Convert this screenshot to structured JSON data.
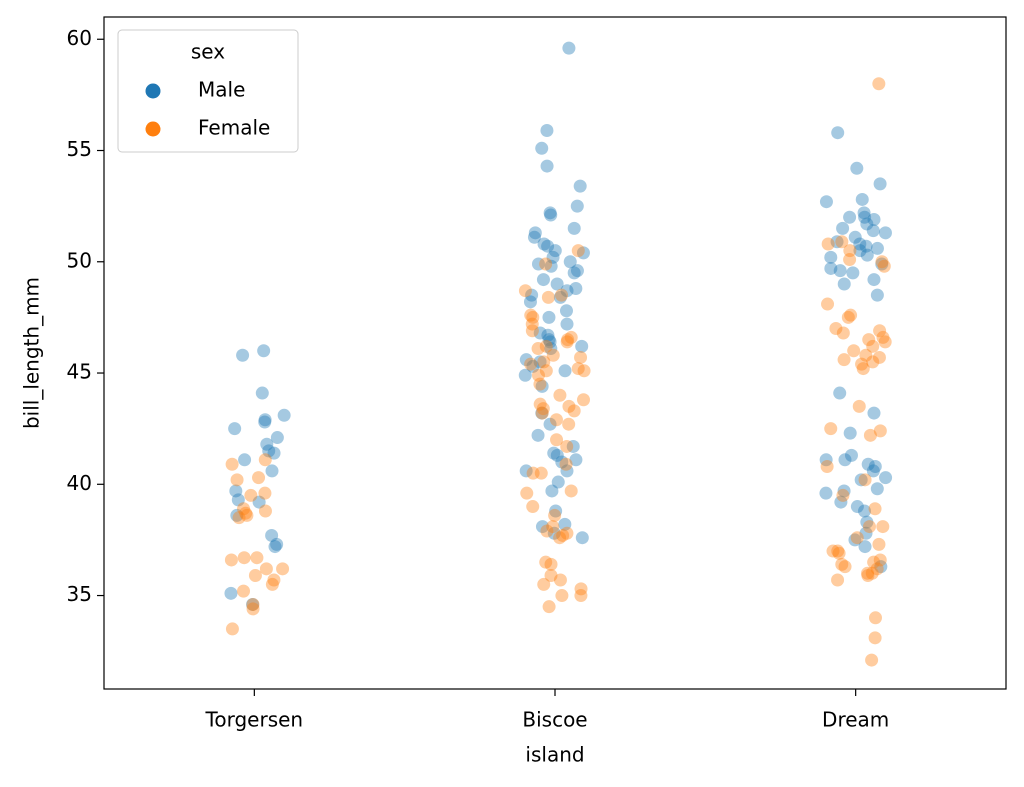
{
  "chart_data": {
    "type": "strip",
    "x_label": "island",
    "y_label": "bill_length_mm",
    "categories": [
      "Torgersen",
      "Biscoe",
      "Dream"
    ],
    "ylim": [
      30.8,
      61.0
    ],
    "yticks": [
      35,
      40,
      45,
      50,
      55,
      60
    ],
    "legend_title": "sex",
    "legend_position": "upper left",
    "series": [
      {
        "name": "Male",
        "color": "#1f77b4",
        "x": [
          "Torgersen",
          "Torgersen",
          "Torgersen",
          "Torgersen",
          "Torgersen",
          "Torgersen",
          "Torgersen",
          "Torgersen",
          "Torgersen",
          "Torgersen",
          "Torgersen",
          "Torgersen",
          "Torgersen",
          "Torgersen",
          "Torgersen",
          "Torgersen",
          "Torgersen",
          "Torgersen",
          "Torgersen",
          "Torgersen",
          "Torgersen",
          "Torgersen",
          "Biscoe",
          "Biscoe",
          "Biscoe",
          "Biscoe",
          "Biscoe",
          "Biscoe",
          "Biscoe",
          "Biscoe",
          "Biscoe",
          "Biscoe",
          "Biscoe",
          "Biscoe",
          "Biscoe",
          "Biscoe",
          "Biscoe",
          "Biscoe",
          "Biscoe",
          "Biscoe",
          "Biscoe",
          "Biscoe",
          "Biscoe",
          "Biscoe",
          "Biscoe",
          "Biscoe",
          "Biscoe",
          "Biscoe",
          "Biscoe",
          "Biscoe",
          "Biscoe",
          "Biscoe",
          "Biscoe",
          "Biscoe",
          "Biscoe",
          "Biscoe",
          "Biscoe",
          "Biscoe",
          "Biscoe",
          "Biscoe",
          "Biscoe",
          "Biscoe",
          "Biscoe",
          "Biscoe",
          "Biscoe",
          "Biscoe",
          "Biscoe",
          "Biscoe",
          "Biscoe",
          "Biscoe",
          "Biscoe",
          "Biscoe",
          "Biscoe",
          "Biscoe",
          "Biscoe",
          "Biscoe",
          "Biscoe",
          "Biscoe",
          "Biscoe",
          "Biscoe",
          "Biscoe",
          "Biscoe",
          "Dream",
          "Dream",
          "Dream",
          "Dream",
          "Dream",
          "Dream",
          "Dream",
          "Dream",
          "Dream",
          "Dream",
          "Dream",
          "Dream",
          "Dream",
          "Dream",
          "Dream",
          "Dream",
          "Dream",
          "Dream",
          "Dream",
          "Dream",
          "Dream",
          "Dream",
          "Dream",
          "Dream",
          "Dream",
          "Dream",
          "Dream",
          "Dream",
          "Dream",
          "Dream",
          "Dream",
          "Dream",
          "Dream",
          "Dream",
          "Dream",
          "Dream",
          "Dream",
          "Dream",
          "Dream",
          "Dream",
          "Dream",
          "Dream",
          "Dream",
          "Dream",
          "Dream",
          "Dream",
          "Dream",
          "Dream",
          "Dream",
          "Dream"
        ],
        "values": [
          46.0,
          45.8,
          44.1,
          43.1,
          42.9,
          42.8,
          42.5,
          42.1,
          41.8,
          41.4,
          41.5,
          41.1,
          40.6,
          39.7,
          39.2,
          39.3,
          38.6,
          37.7,
          37.3,
          37.2,
          35.1,
          34.6,
          59.6,
          55.9,
          55.1,
          54.3,
          53.4,
          52.5,
          52.2,
          52.1,
          51.5,
          51.3,
          51.1,
          50.8,
          50.7,
          50.5,
          50.4,
          50.2,
          50.0,
          49.9,
          49.8,
          49.6,
          49.5,
          49.2,
          49.0,
          48.8,
          48.7,
          48.5,
          48.4,
          48.2,
          47.8,
          47.5,
          47.2,
          46.8,
          46.7,
          46.5,
          46.4,
          46.2,
          46.1,
          45.6,
          45.5,
          45.3,
          45.1,
          44.9,
          44.4,
          43.2,
          42.7,
          42.2,
          41.7,
          41.4,
          41.3,
          41.1,
          41.0,
          40.6,
          40.6,
          40.1,
          39.7,
          38.8,
          38.2,
          38.1,
          37.8,
          37.6,
          55.8,
          54.2,
          53.5,
          52.8,
          52.7,
          52.2,
          52.0,
          52.0,
          51.9,
          51.7,
          51.5,
          51.4,
          51.3,
          51.1,
          50.9,
          50.8,
          50.7,
          50.6,
          50.5,
          50.3,
          50.2,
          49.9,
          49.7,
          49.6,
          49.5,
          49.2,
          49.0,
          48.5,
          44.1,
          43.2,
          42.3,
          41.3,
          41.1,
          41.1,
          40.9,
          40.8,
          40.6,
          40.3,
          40.2,
          39.8,
          39.7,
          39.6,
          39.2,
          39.0,
          38.8,
          38.3,
          37.8,
          37.5,
          37.2,
          36.3
        ]
      },
      {
        "name": "Female",
        "color": "#ff7f0e",
        "x": [
          "Torgersen",
          "Torgersen",
          "Torgersen",
          "Torgersen",
          "Torgersen",
          "Torgersen",
          "Torgersen",
          "Torgersen",
          "Torgersen",
          "Torgersen",
          "Torgersen",
          "Torgersen",
          "Torgersen",
          "Torgersen",
          "Torgersen",
          "Torgersen",
          "Torgersen",
          "Torgersen",
          "Torgersen",
          "Torgersen",
          "Torgersen",
          "Torgersen",
          "Torgersen",
          "Biscoe",
          "Biscoe",
          "Biscoe",
          "Biscoe",
          "Biscoe",
          "Biscoe",
          "Biscoe",
          "Biscoe",
          "Biscoe",
          "Biscoe",
          "Biscoe",
          "Biscoe",
          "Biscoe",
          "Biscoe",
          "Biscoe",
          "Biscoe",
          "Biscoe",
          "Biscoe",
          "Biscoe",
          "Biscoe",
          "Biscoe",
          "Biscoe",
          "Biscoe",
          "Biscoe",
          "Biscoe",
          "Biscoe",
          "Biscoe",
          "Biscoe",
          "Biscoe",
          "Biscoe",
          "Biscoe",
          "Biscoe",
          "Biscoe",
          "Biscoe",
          "Biscoe",
          "Biscoe",
          "Biscoe",
          "Biscoe",
          "Biscoe",
          "Biscoe",
          "Biscoe",
          "Biscoe",
          "Biscoe",
          "Biscoe",
          "Biscoe",
          "Biscoe",
          "Biscoe",
          "Biscoe",
          "Biscoe",
          "Biscoe",
          "Biscoe",
          "Biscoe",
          "Biscoe",
          "Biscoe",
          "Biscoe",
          "Dream",
          "Dream",
          "Dream",
          "Dream",
          "Dream",
          "Dream",
          "Dream",
          "Dream",
          "Dream",
          "Dream",
          "Dream",
          "Dream",
          "Dream",
          "Dream",
          "Dream",
          "Dream",
          "Dream",
          "Dream",
          "Dream",
          "Dream",
          "Dream",
          "Dream",
          "Dream",
          "Dream",
          "Dream",
          "Dream",
          "Dream",
          "Dream",
          "Dream",
          "Dream",
          "Dream",
          "Dream",
          "Dream",
          "Dream",
          "Dream",
          "Dream",
          "Dream",
          "Dream",
          "Dream",
          "Dream",
          "Dream",
          "Dream",
          "Dream",
          "Dream",
          "Dream",
          "Dream",
          "Dream",
          "Dream",
          "Dream",
          "Dream",
          "Dream"
        ],
        "values": [
          41.1,
          40.9,
          40.3,
          40.2,
          39.6,
          39.5,
          38.9,
          38.8,
          38.7,
          38.6,
          38.5,
          36.7,
          36.6,
          36.7,
          36.2,
          36.2,
          35.9,
          35.7,
          35.5,
          35.2,
          34.6,
          34.4,
          33.5,
          50.5,
          49.9,
          48.7,
          48.5,
          48.4,
          47.6,
          47.5,
          47.2,
          46.9,
          46.6,
          46.5,
          46.4,
          46.2,
          46.1,
          45.8,
          45.7,
          45.5,
          45.4,
          45.2,
          45.1,
          45.1,
          44.9,
          44.5,
          44.0,
          43.8,
          43.6,
          43.5,
          43.4,
          43.3,
          43.2,
          42.9,
          42.7,
          42.0,
          41.7,
          40.9,
          40.5,
          40.5,
          39.7,
          39.6,
          39.0,
          38.6,
          38.1,
          37.9,
          37.8,
          37.7,
          37.6,
          36.5,
          36.4,
          35.9,
          35.7,
          35.5,
          35.3,
          35.0,
          35.0,
          34.5,
          58.0,
          50.9,
          50.8,
          50.5,
          50.1,
          50.0,
          49.8,
          48.1,
          47.6,
          47.5,
          47.0,
          46.9,
          46.8,
          46.6,
          46.5,
          46.4,
          46.2,
          46.0,
          45.8,
          45.7,
          45.6,
          45.5,
          45.4,
          45.2,
          43.5,
          42.5,
          42.4,
          42.2,
          40.8,
          40.2,
          39.5,
          38.9,
          38.1,
          38.1,
          37.6,
          37.3,
          37.0,
          37.0,
          36.9,
          36.6,
          36.5,
          36.4,
          36.3,
          36.2,
          36.0,
          36.0,
          35.9,
          35.7,
          34.0,
          33.1,
          32.1
        ]
      }
    ]
  }
}
